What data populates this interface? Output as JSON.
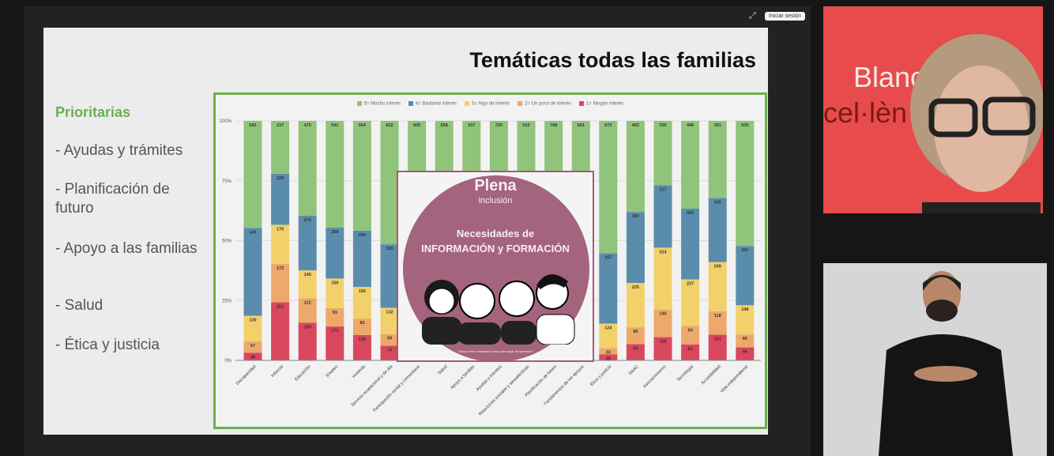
{
  "window": {
    "login_button": "Iniciar sesión",
    "expand_icon": "expand-icon"
  },
  "slide": {
    "title": "Temáticas todas las familias",
    "priority_heading": "Prioritarias",
    "priority_items": [
      "- Ayudas y trámites",
      "- Planificación de futuro",
      "- Apoyo a las familias",
      "- Salud",
      "- Ética y justicia"
    ]
  },
  "overlay": {
    "brand_line1": "Plena",
    "brand_line2": "inclusión",
    "title_line1": "Necesidades de",
    "title_line2": "INFORMACIÓN y FORMACIÓN",
    "caption": "\"Nunca eres demasiado viejo para dejar de aprender\""
  },
  "camera1": {
    "background_text_1": "Blanc",
    "background_text_2": "cel·lèn"
  },
  "colors": {
    "chart_border": "#6ab04c",
    "green": "#8fc47a",
    "blue": "#5a8cac",
    "yellow": "#f2d16b",
    "orange": "#eda86a",
    "red": "#d9475e",
    "brand_pink": "#a5647e",
    "camera_bg": "#e84b4b"
  },
  "chart_data": {
    "type": "bar",
    "stacked": true,
    "normalized": true,
    "ylim": [
      0,
      100
    ],
    "yticks": [
      "0%",
      "25%",
      "50%",
      "75%",
      "100%"
    ],
    "legend_position": "top",
    "categories": [
      "Discapacidad",
      "Infancia",
      "Educación",
      "Empleo",
      "Vivienda",
      "Servicio ocupacional y de día",
      "Participación social y comunitaria",
      "Salud",
      "Apoyo a familias",
      "Ayudas y trámites",
      "Relaciones sociales y sexoafectivas",
      "Planificación de futuro",
      "Fundamentos de los apoyos",
      "Ética y justicia",
      "SAAC",
      "Asociacionismo",
      "Tecnología",
      "Accesibilidad",
      "Vida independiente"
    ],
    "series": [
      {
        "name": "5= Mucho interés",
        "color": "#8fc47a",
        "values": [
          542,
          237,
          475,
          541,
          554,
          622,
          605,
          658,
          637,
          720,
          510,
          748,
          691,
          673,
          462,
          326,
          446,
          391,
          635
        ]
      },
      {
        "name": "4= Bastante interés",
        "color": "#5a8cac",
        "values": [
          446,
          229,
          274,
          258,
          284,
          320,
          null,
          null,
          null,
          null,
          null,
          null,
          null,
          357,
          360,
          317,
          360,
          325,
          301
        ]
      },
      {
        "name": "3= Algo de interés",
        "color": "#f2d16b",
        "values": [
          130,
          175,
          140,
          150,
          160,
          132,
          null,
          null,
          null,
          null,
          null,
          null,
          null,
          124,
          225,
          314,
          237,
          249,
          148
        ]
      },
      {
        "name": "2= Un poco de interés",
        "color": "#eda86a",
        "values": [
          57,
          172,
          122,
          93,
          83,
          59,
          null,
          null,
          null,
          null,
          null,
          null,
          null,
          33,
          85,
          140,
          94,
          118,
          66
        ]
      },
      {
        "name": "1= Ningún interés",
        "color": "#d9475e",
        "values": [
          39,
          261,
          189,
          172,
          128,
          74,
          null,
          null,
          null,
          null,
          null,
          null,
          null,
          30,
          83,
          118,
          81,
          131,
          66
        ]
      }
    ]
  }
}
